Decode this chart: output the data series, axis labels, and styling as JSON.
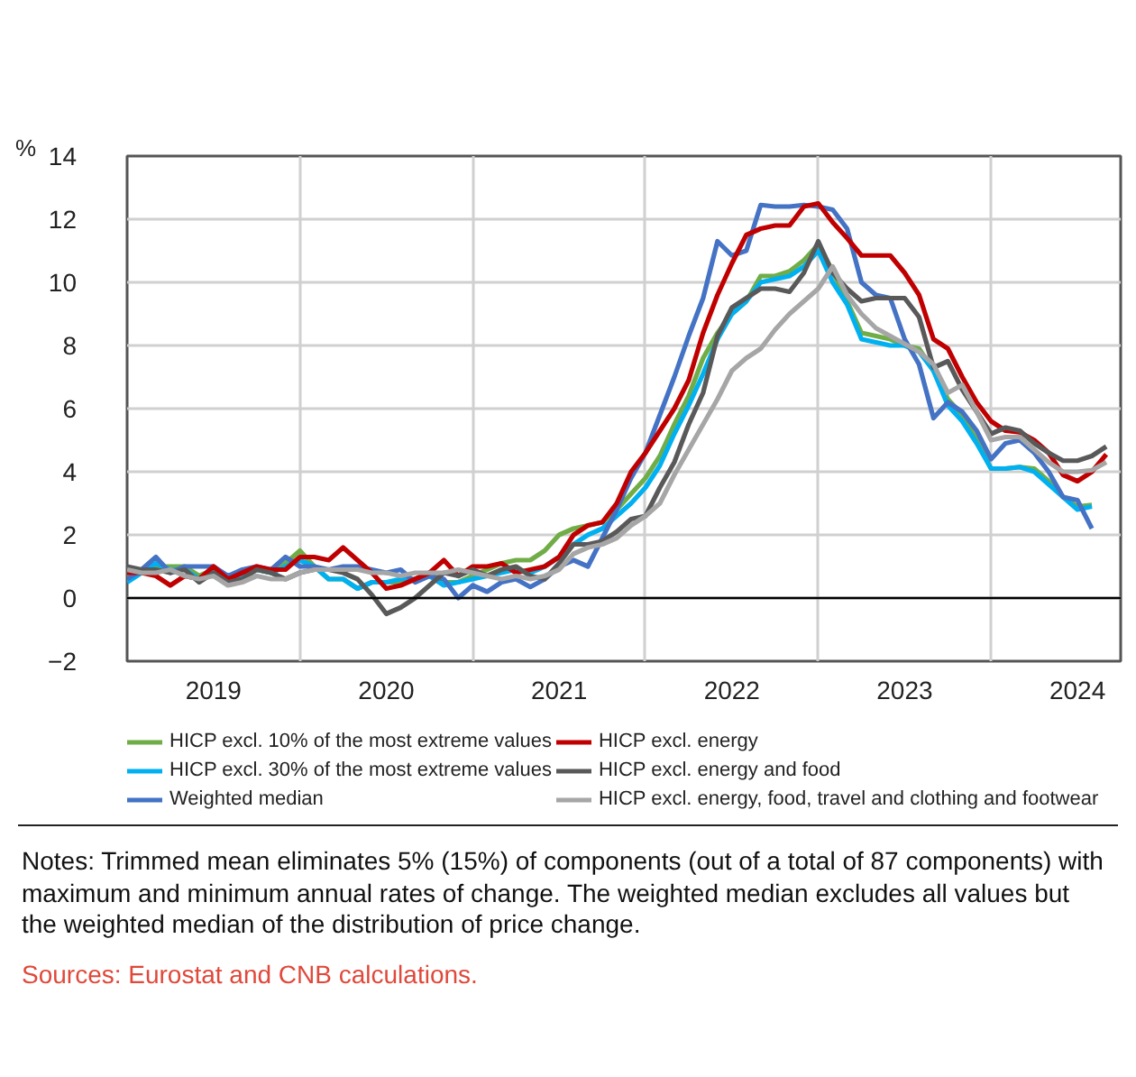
{
  "chart_data": {
    "type": "line",
    "ylabel": "%",
    "x": [
      "2019-01",
      "2019-02",
      "2019-03",
      "2019-04",
      "2019-05",
      "2019-06",
      "2019-07",
      "2019-08",
      "2019-09",
      "2019-10",
      "2019-11",
      "2019-12",
      "2020-01",
      "2020-02",
      "2020-03",
      "2020-04",
      "2020-05",
      "2020-06",
      "2020-07",
      "2020-08",
      "2020-09",
      "2020-10",
      "2020-11",
      "2020-12",
      "2021-01",
      "2021-02",
      "2021-03",
      "2021-04",
      "2021-05",
      "2021-06",
      "2021-07",
      "2021-08",
      "2021-09",
      "2021-10",
      "2021-11",
      "2021-12",
      "2022-01",
      "2022-02",
      "2022-03",
      "2022-04",
      "2022-05",
      "2022-06",
      "2022-07",
      "2022-08",
      "2022-09",
      "2022-10",
      "2022-11",
      "2022-12",
      "2023-01",
      "2023-02",
      "2023-03",
      "2023-04",
      "2023-05",
      "2023-06",
      "2023-07",
      "2023-08",
      "2023-09",
      "2023-10",
      "2023-11",
      "2023-12",
      "2024-01",
      "2024-02",
      "2024-03",
      "2024-04",
      "2024-05",
      "2024-06",
      "2024-07",
      "2024-08",
      "2024-09"
    ],
    "series": [
      {
        "name": "HICP excl. 10% of the most extreme values",
        "color": "#70ad47",
        "values": [
          0.7,
          0.8,
          1.0,
          1.0,
          1.0,
          0.7,
          0.9,
          0.6,
          0.8,
          0.9,
          0.8,
          1.1,
          1.5,
          1.0,
          0.6,
          0.6,
          0.3,
          0.5,
          0.5,
          0.5,
          0.6,
          0.8,
          0.5,
          0.5,
          0.7,
          0.9,
          1.1,
          1.2,
          1.2,
          1.5,
          2.0,
          2.2,
          2.3,
          2.4,
          2.8,
          3.3,
          3.8,
          4.5,
          5.5,
          6.4,
          7.6,
          8.4,
          9.0,
          9.4,
          10.2,
          10.2,
          10.35,
          10.7,
          11.2,
          10.35,
          9.4,
          8.4,
          8.3,
          8.2,
          8.0,
          7.9,
          7.2,
          6.3,
          5.8,
          5.0,
          4.1,
          4.1,
          4.15,
          4.1,
          3.7,
          3.2,
          2.9,
          2.95,
          null
        ]
      },
      {
        "name": "HICP excl. 30% of the most extreme values",
        "color": "#00b0f0",
        "values": [
          0.5,
          0.8,
          1.1,
          0.9,
          0.9,
          0.6,
          0.8,
          0.5,
          0.7,
          0.9,
          0.8,
          1.0,
          1.2,
          1.0,
          0.6,
          0.6,
          0.3,
          0.5,
          0.5,
          0.6,
          0.6,
          0.7,
          0.4,
          0.5,
          0.6,
          0.7,
          0.8,
          0.9,
          0.8,
          1.0,
          1.3,
          1.7,
          2.0,
          2.2,
          2.6,
          3.0,
          3.5,
          4.2,
          5.2,
          6.1,
          7.1,
          8.2,
          9.0,
          9.4,
          10.0,
          10.1,
          10.2,
          10.5,
          11.0,
          10.0,
          9.3,
          8.2,
          8.1,
          8.0,
          8.0,
          7.8,
          7.2,
          6.1,
          5.6,
          4.9,
          4.1,
          4.1,
          4.15,
          4.0,
          3.6,
          3.2,
          2.8,
          2.9,
          null
        ]
      },
      {
        "name": "Weighted median",
        "color": "#4472c4",
        "values": [
          0.6,
          0.9,
          1.3,
          0.8,
          1.0,
          1.0,
          1.0,
          0.7,
          0.9,
          1.0,
          0.9,
          1.3,
          1.0,
          1.0,
          0.9,
          1.0,
          1.0,
          0.9,
          0.8,
          0.9,
          0.5,
          0.7,
          0.6,
          0.0,
          0.4,
          0.2,
          0.5,
          0.6,
          0.35,
          0.6,
          1.0,
          1.2,
          1.0,
          1.9,
          2.8,
          3.8,
          4.6,
          5.8,
          7.0,
          8.3,
          9.5,
          11.3,
          10.85,
          11.0,
          12.45,
          12.4,
          12.4,
          12.45,
          12.4,
          12.3,
          11.7,
          10.0,
          9.6,
          9.5,
          8.2,
          7.4,
          5.7,
          6.2,
          5.9,
          5.3,
          4.4,
          4.9,
          5.0,
          4.6,
          4.0,
          3.2,
          3.1,
          2.2,
          null
        ]
      },
      {
        "name": "HICP excl. energy",
        "color": "#c00000",
        "values": [
          0.8,
          0.8,
          0.7,
          0.4,
          0.7,
          0.6,
          1.0,
          0.6,
          0.8,
          1.0,
          0.9,
          0.9,
          1.3,
          1.3,
          1.2,
          1.6,
          1.2,
          0.8,
          0.3,
          0.4,
          0.6,
          0.8,
          1.2,
          0.7,
          1.0,
          1.0,
          1.1,
          0.8,
          0.9,
          1.0,
          1.3,
          2.0,
          2.3,
          2.4,
          3.0,
          4.0,
          4.6,
          5.3,
          6.0,
          6.9,
          8.4,
          9.6,
          10.6,
          11.5,
          11.7,
          11.8,
          11.8,
          12.4,
          12.5,
          11.9,
          11.4,
          10.85,
          10.85,
          10.85,
          10.3,
          9.6,
          8.2,
          7.9,
          7.0,
          6.2,
          5.6,
          5.3,
          5.25,
          5.0,
          4.6,
          3.9,
          3.7,
          4.0,
          4.55
        ]
      },
      {
        "name": "HICP excl. energy and food",
        "color": "#595959",
        "values": [
          1.0,
          0.9,
          0.9,
          0.8,
          0.9,
          0.5,
          0.8,
          0.5,
          0.6,
          0.9,
          0.8,
          0.6,
          0.8,
          0.9,
          0.9,
          0.8,
          0.6,
          0.1,
          -0.5,
          -0.3,
          0.0,
          0.4,
          0.8,
          0.7,
          0.9,
          0.7,
          0.9,
          1.0,
          0.7,
          0.6,
          1.1,
          1.7,
          1.7,
          1.8,
          2.1,
          2.5,
          2.6,
          3.5,
          4.3,
          5.5,
          6.5,
          8.3,
          9.2,
          9.5,
          9.8,
          9.8,
          9.7,
          10.3,
          11.3,
          10.3,
          9.8,
          9.4,
          9.5,
          9.5,
          9.5,
          8.9,
          7.3,
          7.5,
          6.6,
          5.9,
          5.2,
          5.4,
          5.3,
          4.9,
          4.6,
          4.35,
          4.35,
          4.5,
          4.8
        ]
      },
      {
        "name": "HICP excl. energy, food, travel and clothing and footwear",
        "color": "#a6a6a6",
        "values": [
          0.9,
          0.8,
          0.8,
          0.9,
          0.7,
          0.6,
          0.7,
          0.4,
          0.5,
          0.7,
          0.6,
          0.6,
          0.8,
          0.9,
          0.9,
          0.9,
          0.9,
          0.8,
          0.8,
          0.7,
          0.8,
          0.8,
          0.8,
          0.9,
          0.8,
          0.7,
          0.6,
          0.7,
          0.6,
          0.7,
          0.9,
          1.4,
          1.6,
          1.7,
          1.9,
          2.3,
          2.6,
          3.0,
          3.9,
          4.7,
          5.5,
          6.3,
          7.2,
          7.6,
          7.9,
          8.5,
          9.0,
          9.4,
          9.8,
          10.5,
          9.6,
          9.0,
          8.55,
          8.3,
          8.05,
          7.8,
          7.4,
          6.5,
          6.75,
          5.9,
          5.0,
          5.1,
          5.1,
          4.7,
          4.3,
          4.0,
          4.0,
          4.05,
          4.3
        ]
      }
    ],
    "xlim": [
      "2019-01",
      "2024-10"
    ],
    "xticks": [
      {
        "value": "2019-07",
        "label": "2019"
      },
      {
        "value": "2020-01",
        "label": null
      },
      {
        "value": "2020-07",
        "label": "2020"
      },
      {
        "value": "2021-01",
        "label": null
      },
      {
        "value": "2021-07",
        "label": "2021"
      },
      {
        "value": "2022-01",
        "label": null
      },
      {
        "value": "2022-07",
        "label": "2022"
      },
      {
        "value": "2023-01",
        "label": null
      },
      {
        "value": "2023-07",
        "label": "2023"
      },
      {
        "value": "2024-01",
        "label": null
      },
      {
        "value": "2024-07",
        "label": "2024"
      }
    ],
    "ylim": [
      -2,
      14
    ],
    "yticks": [
      {
        "value": -2,
        "label": "−2"
      },
      0,
      2,
      4,
      6,
      8,
      10,
      12,
      14
    ],
    "ref_lines": [
      {
        "axis": "y",
        "value": 0,
        "color": "#000000"
      }
    ],
    "grid": true,
    "legend": "bottom",
    "marker": "none",
    "line_style": "solid",
    "annotations": [
      "Notes: Trimmed mean eliminates 5% (15%) of components (out of a total of 87 components) with maximum and minimum annual rates of change. The weighted median excludes all values but the weighted median of the distribution of price change.",
      "Sources: Eurostat and CNB calculations."
    ]
  }
}
